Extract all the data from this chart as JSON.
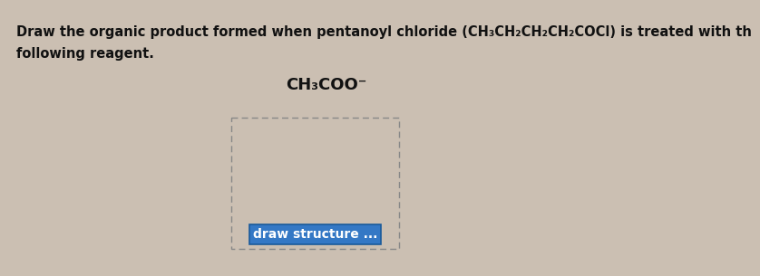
{
  "background_color": "#cbbfb2",
  "title_line1": "Draw the organic product formed when pentanoyl chloride (CH₃CH₂CH₂CH₂COCl) is treated with th",
  "title_line2": "following reagent.",
  "reagent_label": "CH₃COO⁻",
  "button_text": "draw structure ...",
  "button_color": "#3478c5",
  "button_text_color": "#ffffff",
  "button_border_color": "#1a5a9a",
  "box_color": "#888888",
  "title_fontsize": 10.5,
  "reagent_fontsize": 13,
  "button_fontsize": 10
}
